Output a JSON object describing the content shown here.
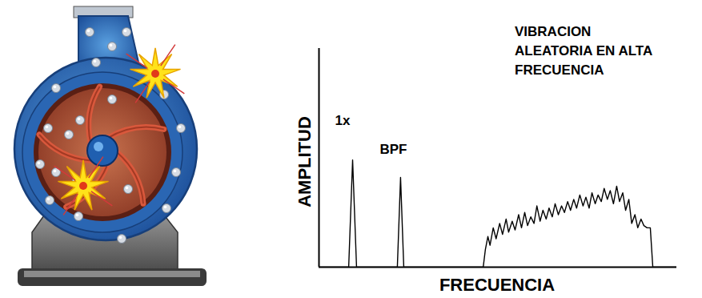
{
  "chart_data": {
    "type": "line",
    "title": "VIBRACION ALEATORIA EN ALTA FRECUENCIA",
    "x_label": "FRECUENCIA",
    "y_label": "AMPLITUD",
    "x": [
      0,
      8.3,
      9.4,
      10.5,
      21.9,
      22.8,
      23.7,
      45.9,
      46.5,
      47.2,
      47.8,
      48.7,
      49.5,
      50.5,
      51.3,
      52.3,
      53.0,
      54.0,
      54.8,
      55.8,
      56.6,
      57.5,
      58.3,
      59.2,
      60.1,
      60.9,
      61.8,
      62.6,
      63.5,
      64.3,
      65.2,
      66.0,
      66.9,
      67.8,
      68.6,
      69.5,
      70.3,
      71.2,
      72.0,
      72.9,
      73.8,
      74.6,
      75.5,
      76.3,
      77.2,
      78.0,
      78.9,
      79.7,
      80.6,
      81.4,
      82.3,
      83.2,
      84.0,
      84.9,
      85.7,
      86.6,
      87.4,
      88.3,
      89.1,
      90.0,
      90.8,
      91.7,
      92.6,
      93.3,
      100
    ],
    "values": [
      0,
      0,
      49,
      0,
      0,
      41,
      0,
      0,
      8,
      14,
      10,
      18,
      13,
      20,
      15,
      22,
      16,
      21,
      17,
      24,
      18,
      25,
      19,
      23,
      20,
      28,
      21,
      26,
      22,
      27,
      23,
      29,
      24,
      28,
      25,
      30,
      26,
      31,
      27,
      33,
      28,
      32,
      27,
      34,
      29,
      33,
      30,
      36,
      31,
      35,
      29,
      37,
      30,
      34,
      26,
      31,
      20,
      24,
      18,
      22,
      19,
      18,
      18,
      0,
      0
    ],
    "color": "#000000",
    "xlim": [
      0,
      100
    ],
    "ylim": [
      0,
      100
    ],
    "xticks": [],
    "yticks": [],
    "tick_labels": false,
    "annotations": [
      {
        "text": "1x",
        "x": 4.5,
        "y": 67
      },
      {
        "text": "BPF",
        "x": 17,
        "y": 54
      }
    ]
  }
}
